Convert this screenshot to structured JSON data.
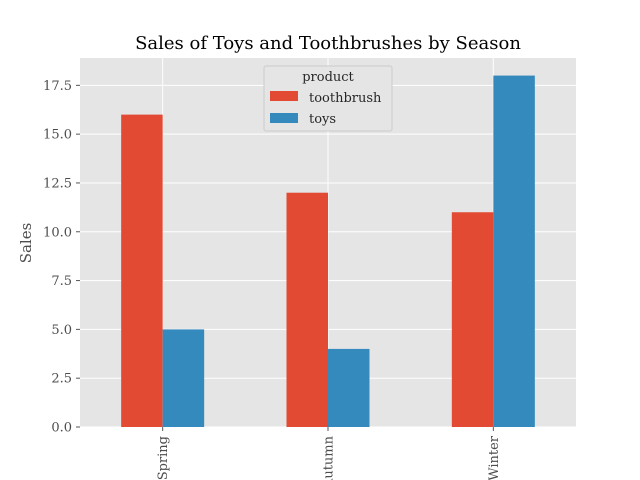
{
  "chart_data": {
    "type": "bar",
    "title": "Sales of Toys and Toothbrushes by Season",
    "xlabel": "",
    "ylabel": "Sales",
    "categories": [
      "Spring",
      "Autumn",
      "Winter"
    ],
    "series": [
      {
        "name": "toothbrush",
        "values": [
          16,
          12,
          11
        ],
        "color": "#E24A33"
      },
      {
        "name": "toys",
        "values": [
          5,
          4,
          18
        ],
        "color": "#348ABD"
      }
    ],
    "ylim": [
      0,
      18.9
    ],
    "yticks": [
      "0.0",
      "2.5",
      "5.0",
      "7.5",
      "10.0",
      "12.5",
      "15.0",
      "17.5"
    ],
    "grid": true,
    "legend": {
      "title": "product",
      "placement": "top-center"
    }
  }
}
